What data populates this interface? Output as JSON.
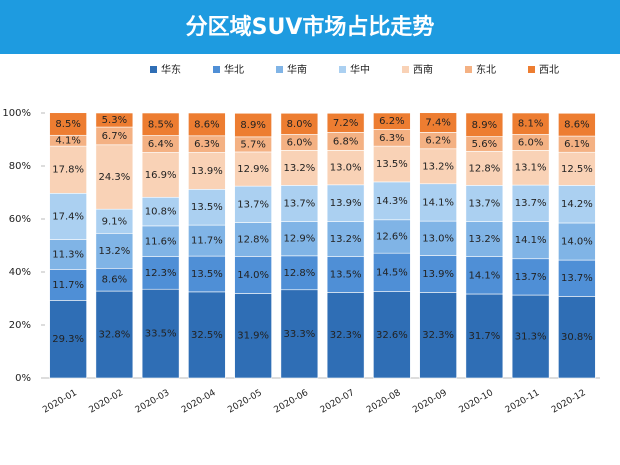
{
  "chart_data": {
    "type": "bar",
    "stacked": true,
    "title": "分区域SUV市场占比走势",
    "categories": [
      "2020-01",
      "2020-02",
      "2020-03",
      "2020-04",
      "2020-05",
      "2020-06",
      "2020-07",
      "2020-08",
      "2020-09",
      "2020-10",
      "2020-11",
      "2020-12"
    ],
    "ylim": [
      0,
      100
    ],
    "yticks": [
      {
        "value": 0,
        "label": "0%"
      },
      {
        "value": 20,
        "label": "20%"
      },
      {
        "value": 40,
        "label": "40%"
      },
      {
        "value": 60,
        "label": "60%"
      },
      {
        "value": 80,
        "label": "80%"
      },
      {
        "value": 100,
        "label": "100%"
      }
    ],
    "series": [
      {
        "name": "华东",
        "color": "#2f6eb5",
        "values": [
          29.3,
          32.8,
          33.5,
          32.5,
          31.9,
          33.3,
          32.3,
          32.6,
          32.3,
          31.7,
          31.3,
          30.8
        ],
        "value_labels": [
          "29.3%",
          "32.8%",
          "33.5%",
          "32.5%",
          "31.9%",
          "33.3%",
          "32.3%",
          "32.6%",
          "32.3%",
          "31.7%",
          "31.3%",
          "30.8%"
        ]
      },
      {
        "name": "华北",
        "color": "#4f8fd6",
        "values": [
          11.7,
          8.6,
          12.3,
          13.5,
          14.0,
          12.8,
          13.5,
          14.5,
          13.9,
          14.1,
          13.7,
          13.7
        ],
        "value_labels": [
          "11.7%",
          "8.6%",
          "12.3%",
          "13.5%",
          "14.0%",
          "12.8%",
          "13.5%",
          "14.5%",
          "13.9%",
          "14.1%",
          "13.7%",
          "13.7%"
        ]
      },
      {
        "name": "华南",
        "color": "#80b4e6",
        "values": [
          11.3,
          13.2,
          11.6,
          11.7,
          12.8,
          12.9,
          13.2,
          12.6,
          13.0,
          13.2,
          14.1,
          14.0
        ],
        "value_labels": [
          "11.3%",
          "13.2%",
          "11.6%",
          "11.7%",
          "12.8%",
          "12.9%",
          "13.2%",
          "12.6%",
          "13.0%",
          "13.2%",
          "14.1%",
          "14.0%"
        ]
      },
      {
        "name": "华中",
        "color": "#abd0f1",
        "values": [
          17.4,
          9.1,
          10.8,
          13.5,
          13.7,
          13.7,
          13.9,
          14.3,
          14.1,
          13.7,
          13.7,
          14.2
        ],
        "value_labels": [
          "17.4%",
          "9.1%",
          "10.8%",
          "13.5%",
          "13.7%",
          "13.7%",
          "13.9%",
          "14.3%",
          "14.1%",
          "13.7%",
          "13.7%",
          "14.2%"
        ]
      },
      {
        "name": "西南",
        "color": "#f9d2b6",
        "values": [
          17.8,
          24.3,
          16.9,
          13.9,
          12.9,
          13.2,
          13.0,
          13.5,
          13.2,
          12.8,
          13.1,
          12.5
        ],
        "value_labels": [
          "17.8%",
          "24.3%",
          "16.9%",
          "13.9%",
          "12.9%",
          "13.2%",
          "13.0%",
          "13.5%",
          "13.2%",
          "12.8%",
          "13.1%",
          "12.5%"
        ]
      },
      {
        "name": "东北",
        "color": "#f4b183",
        "values": [
          4.1,
          6.7,
          6.4,
          6.3,
          5.7,
          6.0,
          6.8,
          6.3,
          6.2,
          5.6,
          6.0,
          6.1
        ],
        "value_labels": [
          "4.1%",
          "6.7%",
          "6.4%",
          "6.3%",
          "5.7%",
          "6.0%",
          "6.8%",
          "6.3%",
          "6.2%",
          "5.6%",
          "6.0%",
          "6.1%"
        ]
      },
      {
        "name": "西北",
        "color": "#ed7d31",
        "values": [
          8.5,
          5.3,
          8.5,
          8.6,
          8.9,
          8.0,
          7.2,
          6.2,
          7.4,
          8.9,
          8.1,
          8.6
        ],
        "value_labels": [
          "8.5%",
          "5.3%",
          "8.5%",
          "8.6%",
          "8.9%",
          "8.0%",
          "7.2%",
          "6.2%",
          "7.4%",
          "8.9%",
          "8.1%",
          "8.6%"
        ]
      }
    ]
  }
}
